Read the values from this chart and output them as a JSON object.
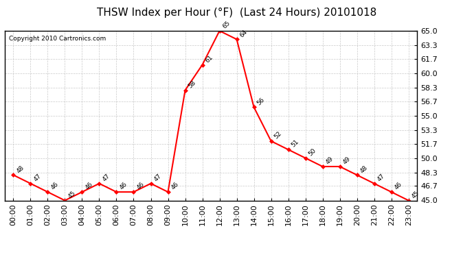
{
  "title": "THSW Index per Hour (°F)  (Last 24 Hours) 20101018",
  "copyright": "Copyright 2010 Cartronics.com",
  "hours": [
    "00:00",
    "01:00",
    "02:00",
    "03:00",
    "04:00",
    "05:00",
    "06:00",
    "07:00",
    "08:00",
    "09:00",
    "10:00",
    "11:00",
    "12:00",
    "13:00",
    "14:00",
    "15:00",
    "16:00",
    "17:00",
    "18:00",
    "19:00",
    "20:00",
    "21:00",
    "22:00",
    "23:00"
  ],
  "values": [
    48,
    47,
    46,
    45,
    46,
    47,
    46,
    46,
    47,
    46,
    58,
    61,
    65,
    64,
    56,
    52,
    51,
    50,
    49,
    49,
    48,
    47,
    46,
    45
  ],
  "ylim_min": 45.0,
  "ylim_max": 65.0,
  "yticks": [
    45.0,
    46.7,
    48.3,
    50.0,
    51.7,
    53.3,
    55.0,
    56.7,
    58.3,
    60.0,
    61.7,
    63.3,
    65.0
  ],
  "line_color": "#ff0000",
  "marker_color": "#ff0000",
  "bg_color": "#ffffff",
  "grid_color": "#bbbbbb",
  "title_fontsize": 11,
  "copyright_fontsize": 6.5,
  "label_fontsize": 6.5,
  "tick_fontsize": 8
}
